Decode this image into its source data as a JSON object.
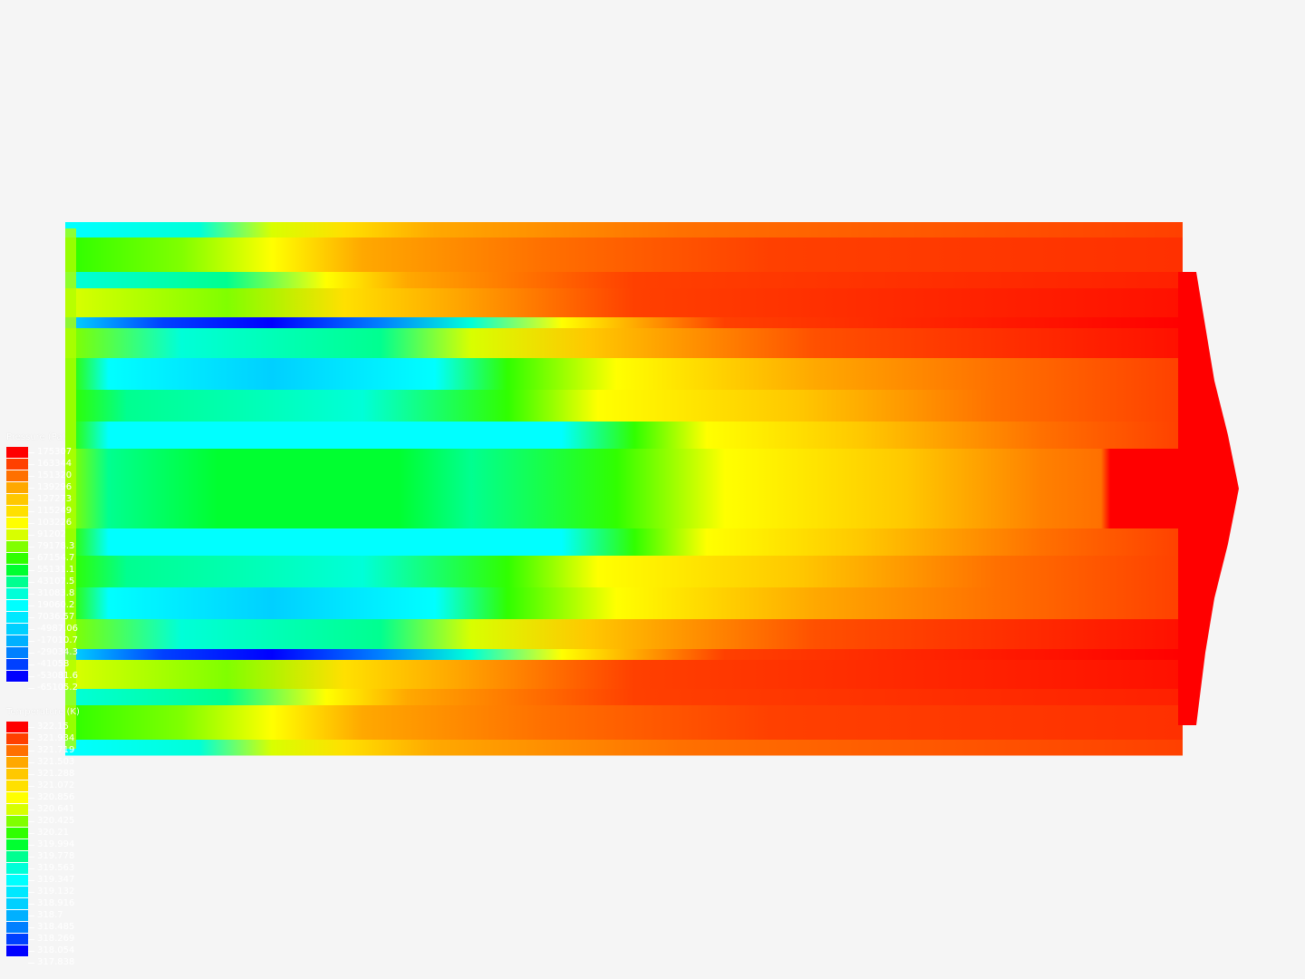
{
  "legends": [
    {
      "title": "Pressure (Pa)",
      "labels": [
        "175307",
        "163344",
        "151320",
        "139296",
        "127273",
        "115249",
        "103226",
        "91202",
        "79178.3",
        "67154.7",
        "55131.1",
        "43107.5",
        "31083.8",
        "19060.2",
        "7036.57",
        "-4987.06",
        "-17010.7",
        "-29034.3",
        "-41058",
        "-53081.6",
        "-65105.2"
      ]
    },
    {
      "title": "Temperature (K)",
      "labels": [
        "322.15",
        "321.934",
        "321.719",
        "321.503",
        "321.288",
        "321.072",
        "320.856",
        "320.641",
        "320.425",
        "320.21",
        "319.994",
        "319.778",
        "319.563",
        "319.347",
        "319.132",
        "318.916",
        "318.7",
        "318.485",
        "318.269",
        "318.054",
        "317.838"
      ]
    }
  ],
  "colormap": [
    "#ff0000",
    "#ff4000",
    "#ff7000",
    "#ffa800",
    "#ffc800",
    "#ffe000",
    "#ffff00",
    "#d8ff00",
    "#80ff00",
    "#30ff00",
    "#00ff30",
    "#00ff90",
    "#00ffd8",
    "#00ffff",
    "#00e8ff",
    "#00d0ff",
    "#00b0ff",
    "#0080ff",
    "#0040ff",
    "#0000ff"
  ],
  "background": "#f5f5f5"
}
